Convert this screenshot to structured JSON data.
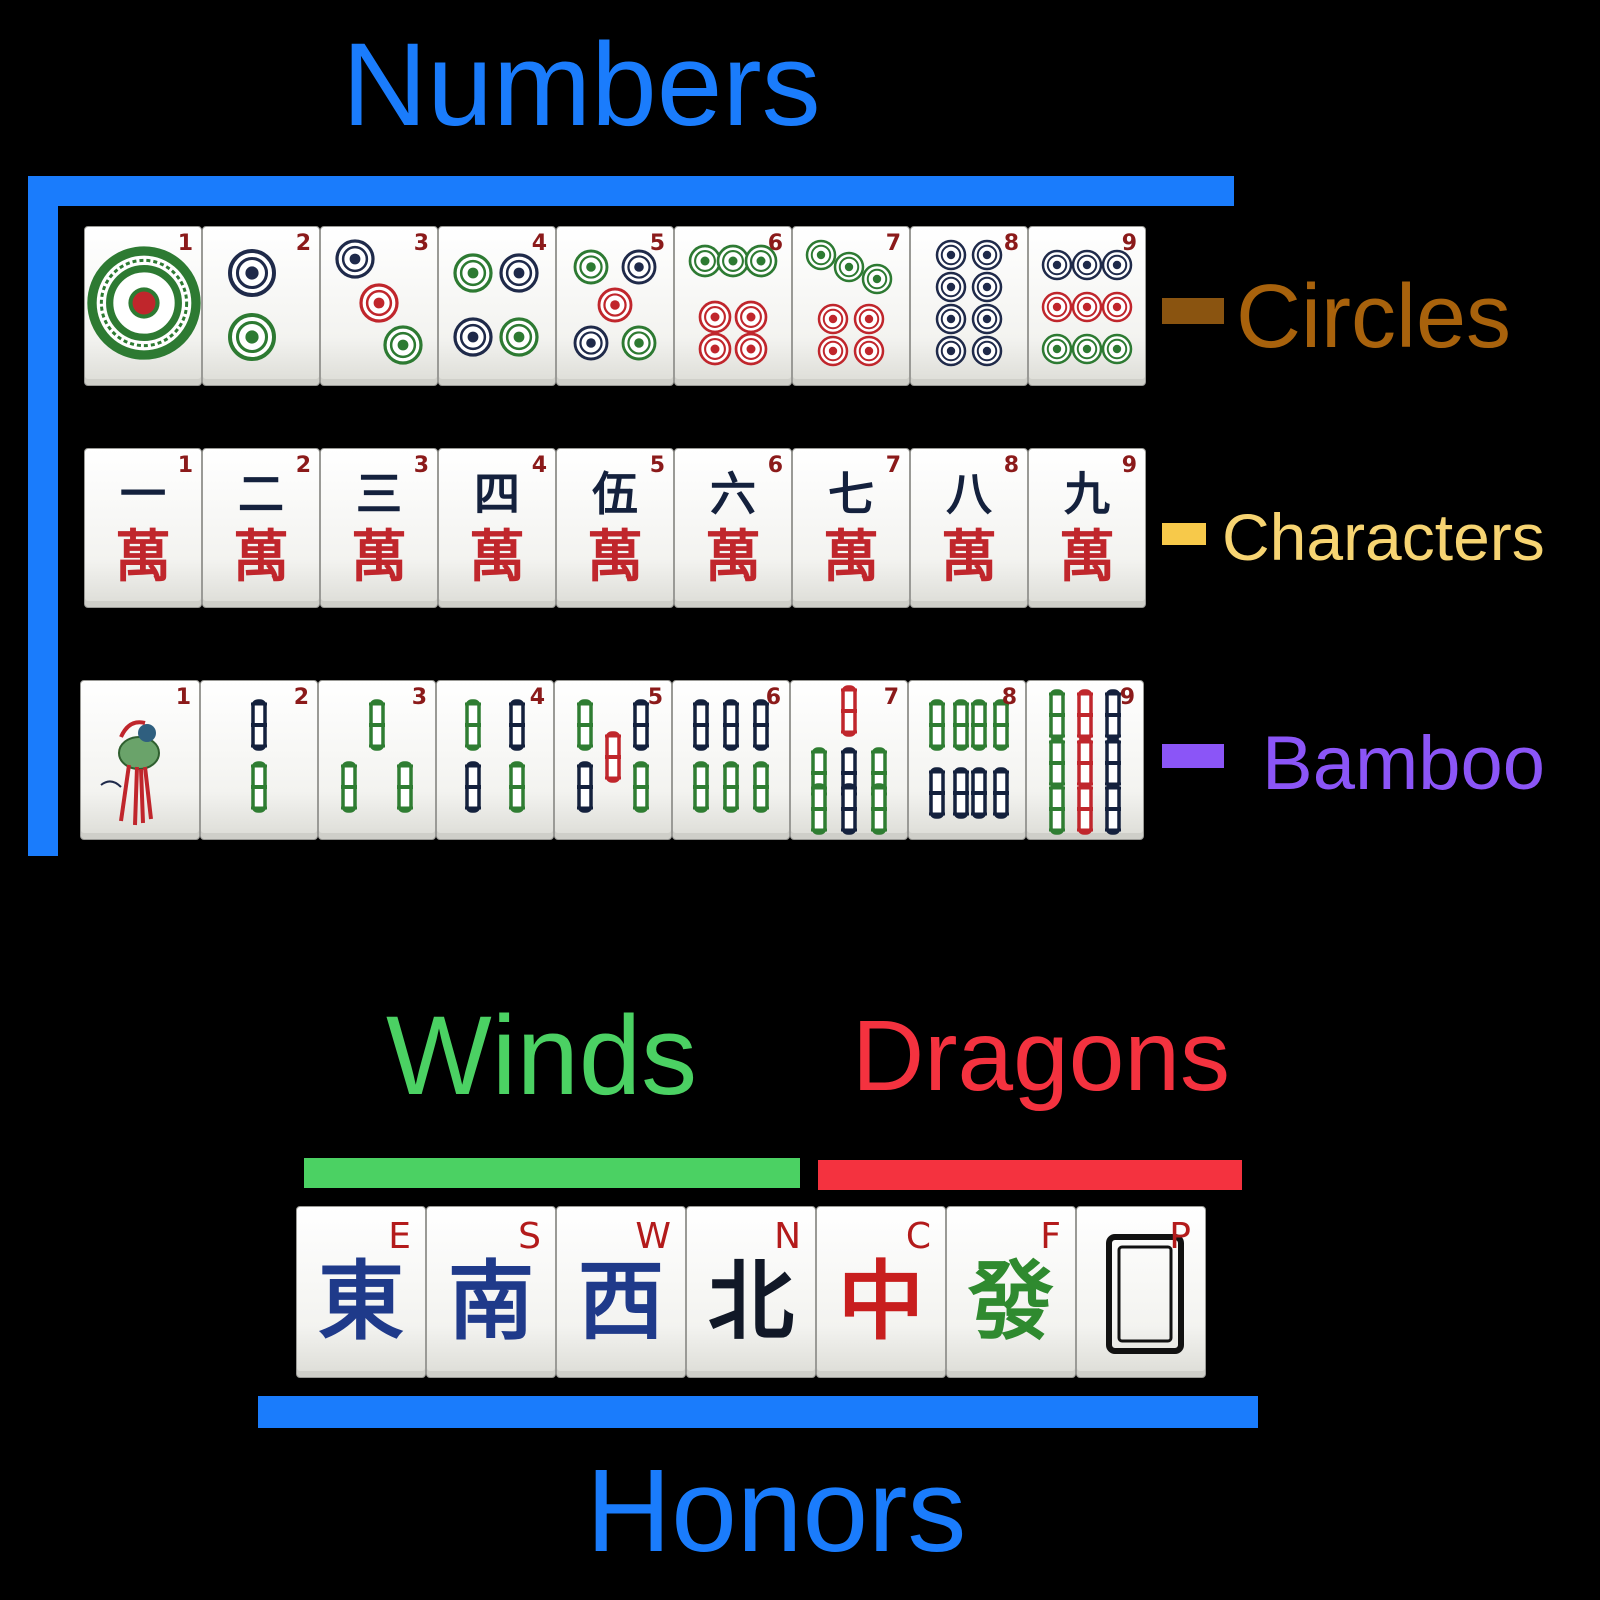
{
  "colors": {
    "background": "#000000",
    "numbers": "#1a7cfc",
    "circles": "#a8620c",
    "characters": "#f7d472",
    "bamboo": "#8b55f7",
    "winds": "#4bd163",
    "dragons": "#f4323f",
    "honors": "#1a7cfc"
  },
  "labels": {
    "numbers": "Numbers",
    "circles": "Circles",
    "characters": "Characters",
    "bamboo": "Bamboo",
    "winds": "Winds",
    "dragons": "Dragons",
    "honors": "Honors"
  },
  "circles_tiles": [
    {
      "num": "1"
    },
    {
      "num": "2"
    },
    {
      "num": "3"
    },
    {
      "num": "4"
    },
    {
      "num": "5"
    },
    {
      "num": "6"
    },
    {
      "num": "7"
    },
    {
      "num": "8"
    },
    {
      "num": "9"
    }
  ],
  "characters_tiles": [
    {
      "num": "1",
      "top": "一",
      "bottom": "萬"
    },
    {
      "num": "2",
      "top": "二",
      "bottom": "萬"
    },
    {
      "num": "3",
      "top": "三",
      "bottom": "萬"
    },
    {
      "num": "4",
      "top": "四",
      "bottom": "萬"
    },
    {
      "num": "5",
      "top": "伍",
      "bottom": "萬"
    },
    {
      "num": "6",
      "top": "六",
      "bottom": "萬"
    },
    {
      "num": "7",
      "top": "七",
      "bottom": "萬"
    },
    {
      "num": "8",
      "top": "八",
      "bottom": "萬"
    },
    {
      "num": "9",
      "top": "九",
      "bottom": "萬"
    }
  ],
  "bamboo_tiles": [
    {
      "num": "1"
    },
    {
      "num": "2"
    },
    {
      "num": "3"
    },
    {
      "num": "4"
    },
    {
      "num": "5"
    },
    {
      "num": "6"
    },
    {
      "num": "7"
    },
    {
      "num": "8"
    },
    {
      "num": "9"
    }
  ],
  "honor_tiles": [
    {
      "letter": "E",
      "glyph": "東",
      "glyph_color": "#1f3a8a",
      "letter_color": "#b31b1b"
    },
    {
      "letter": "S",
      "glyph": "南",
      "glyph_color": "#1f3a8a",
      "letter_color": "#b31b1b"
    },
    {
      "letter": "W",
      "glyph": "西",
      "glyph_color": "#1f3a8a",
      "letter_color": "#b31b1b"
    },
    {
      "letter": "N",
      "glyph": "北",
      "glyph_color": "#111827",
      "letter_color": "#b31b1b"
    },
    {
      "letter": "C",
      "glyph": "中",
      "glyph_color": "#c81e1e",
      "letter_color": "#b31b1b"
    },
    {
      "letter": "F",
      "glyph": "發",
      "glyph_color": "#2f8a2f",
      "letter_color": "#b31b1b"
    },
    {
      "letter": "P",
      "glyph": "",
      "glyph_color": "#111111",
      "letter_color": "#b31b1b"
    }
  ]
}
